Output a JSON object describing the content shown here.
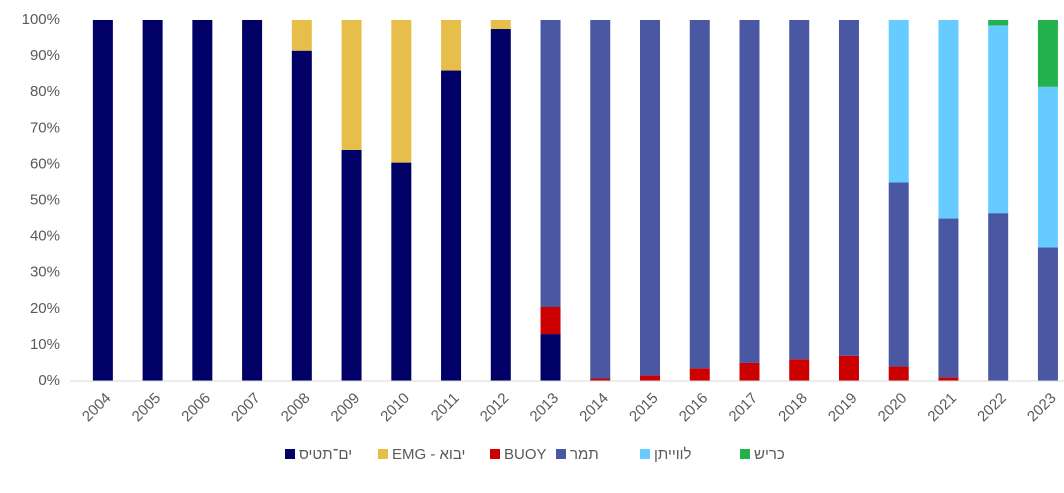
{
  "chart_data": {
    "type": "stacked_bar",
    "categories": [
      "2004",
      "2005",
      "2006",
      "2007",
      "2008",
      "2009",
      "2010",
      "2011",
      "2012",
      "2013",
      "2014",
      "2015",
      "2016",
      "2017",
      "2018",
      "2019",
      "2020",
      "2021",
      "2022",
      "2023"
    ],
    "series": [
      {
        "name": "ים־תטיס",
        "color": "#000066",
        "values": [
          100,
          100,
          100,
          100,
          91.5,
          64,
          60.5,
          86,
          97.5,
          13,
          0,
          0,
          0,
          0,
          0,
          0,
          0,
          0,
          0,
          0
        ]
      },
      {
        "name": "EMG - יבוא",
        "color": "#E8BE4A",
        "values": [
          0,
          0,
          0,
          0,
          8.5,
          36,
          39.5,
          14,
          2.5,
          0,
          0,
          0,
          0,
          0,
          0,
          0,
          0,
          0,
          0,
          0
        ]
      },
      {
        "name": "BUOY",
        "color": "#CC0000",
        "values": [
          0,
          0,
          0,
          0,
          0,
          0,
          0,
          0,
          0,
          7.5,
          0.7,
          1.5,
          3.5,
          5,
          6,
          7,
          4,
          1,
          0,
          0
        ]
      },
      {
        "name": "תמר",
        "color": "#4A57A3",
        "values": [
          0,
          0,
          0,
          0,
          0,
          0,
          0,
          0,
          0,
          79.5,
          99.3,
          98.5,
          96.5,
          95,
          94,
          93,
          51,
          44,
          46.5,
          37
        ]
      },
      {
        "name": "לווייתן",
        "color": "#66CCFF",
        "values": [
          0,
          0,
          0,
          0,
          0,
          0,
          0,
          0,
          0,
          0,
          0,
          0,
          0,
          0,
          0,
          0,
          45,
          55,
          52,
          44.5
        ]
      },
      {
        "name": "כריש",
        "color": "#22B14C",
        "values": [
          0,
          0,
          0,
          0,
          0,
          0,
          0,
          0,
          0,
          0,
          0,
          0,
          0,
          0,
          0,
          0,
          0,
          0,
          1.5,
          18.5
        ]
      }
    ],
    "ylim": [
      0,
      100
    ],
    "yticks": [
      {
        "value": 0,
        "label": "0%"
      },
      {
        "value": 10,
        "label": "10%"
      },
      {
        "value": 20,
        "label": "20%"
      },
      {
        "value": 30,
        "label": "30%"
      },
      {
        "value": 40,
        "label": "40%"
      },
      {
        "value": 50,
        "label": "50%"
      },
      {
        "value": 60,
        "label": "60%"
      },
      {
        "value": 70,
        "label": "70%"
      },
      {
        "value": 80,
        "label": "80%"
      },
      {
        "value": 90,
        "label": "90%"
      },
      {
        "value": 100,
        "label": "100%"
      }
    ],
    "grid": false
  }
}
